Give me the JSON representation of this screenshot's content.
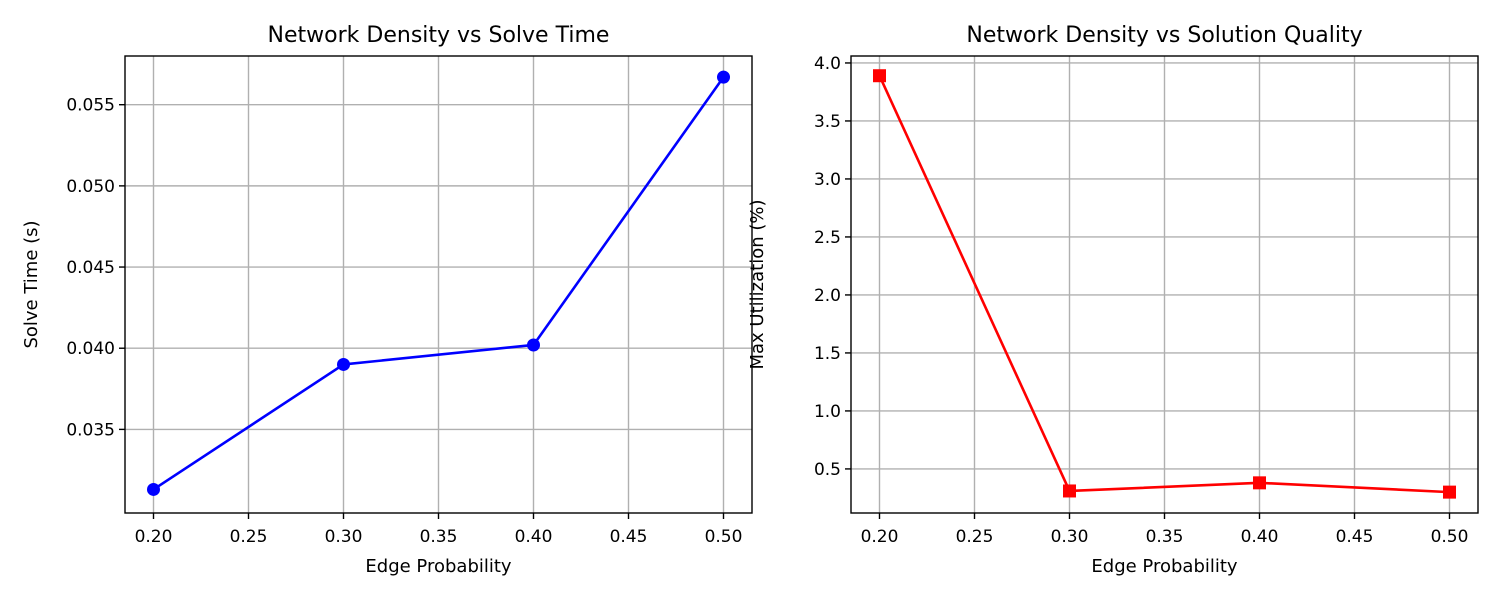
{
  "chart_data": [
    {
      "type": "line",
      "title": "Network Density vs Solve Time",
      "xlabel": "Edge Probability",
      "ylabel": "Solve Time (s)",
      "xlim": [
        0.185,
        0.515
      ],
      "ylim": [
        0.02985,
        0.058
      ],
      "xticks": [
        0.2,
        0.25,
        0.3,
        0.35,
        0.4,
        0.45,
        0.5
      ],
      "xtick_labels": [
        "0.20",
        "0.25",
        "0.30",
        "0.35",
        "0.40",
        "0.45",
        "0.50"
      ],
      "yticks": [
        0.035,
        0.04,
        0.045,
        0.05,
        0.055
      ],
      "ytick_labels": [
        "0.035",
        "0.040",
        "0.045",
        "0.050",
        "0.055"
      ],
      "grid": true,
      "series": [
        {
          "color": "#0000ff",
          "marker": "circle",
          "x": [
            0.2,
            0.3,
            0.4,
            0.5
          ],
          "y": [
            0.0313,
            0.039,
            0.0402,
            0.0567
          ]
        }
      ]
    },
    {
      "type": "line",
      "title": "Network Density vs Solution Quality",
      "xlabel": "Edge Probability",
      "ylabel": "Max Utilization (%)",
      "xlim": [
        0.185,
        0.515
      ],
      "ylim": [
        0.12,
        4.06
      ],
      "xticks": [
        0.2,
        0.25,
        0.3,
        0.35,
        0.4,
        0.45,
        0.5
      ],
      "xtick_labels": [
        "0.20",
        "0.25",
        "0.30",
        "0.35",
        "0.40",
        "0.45",
        "0.50"
      ],
      "yticks": [
        0.5,
        1.0,
        1.5,
        2.0,
        2.5,
        3.0,
        3.5,
        4.0
      ],
      "ytick_labels": [
        "0.5",
        "1.0",
        "1.5",
        "2.0",
        "2.5",
        "3.0",
        "3.5",
        "4.0"
      ],
      "grid": true,
      "series": [
        {
          "color": "#ff0000",
          "marker": "square",
          "x": [
            0.2,
            0.3,
            0.4,
            0.5
          ],
          "y": [
            3.89,
            0.31,
            0.38,
            0.3
          ]
        }
      ]
    }
  ]
}
